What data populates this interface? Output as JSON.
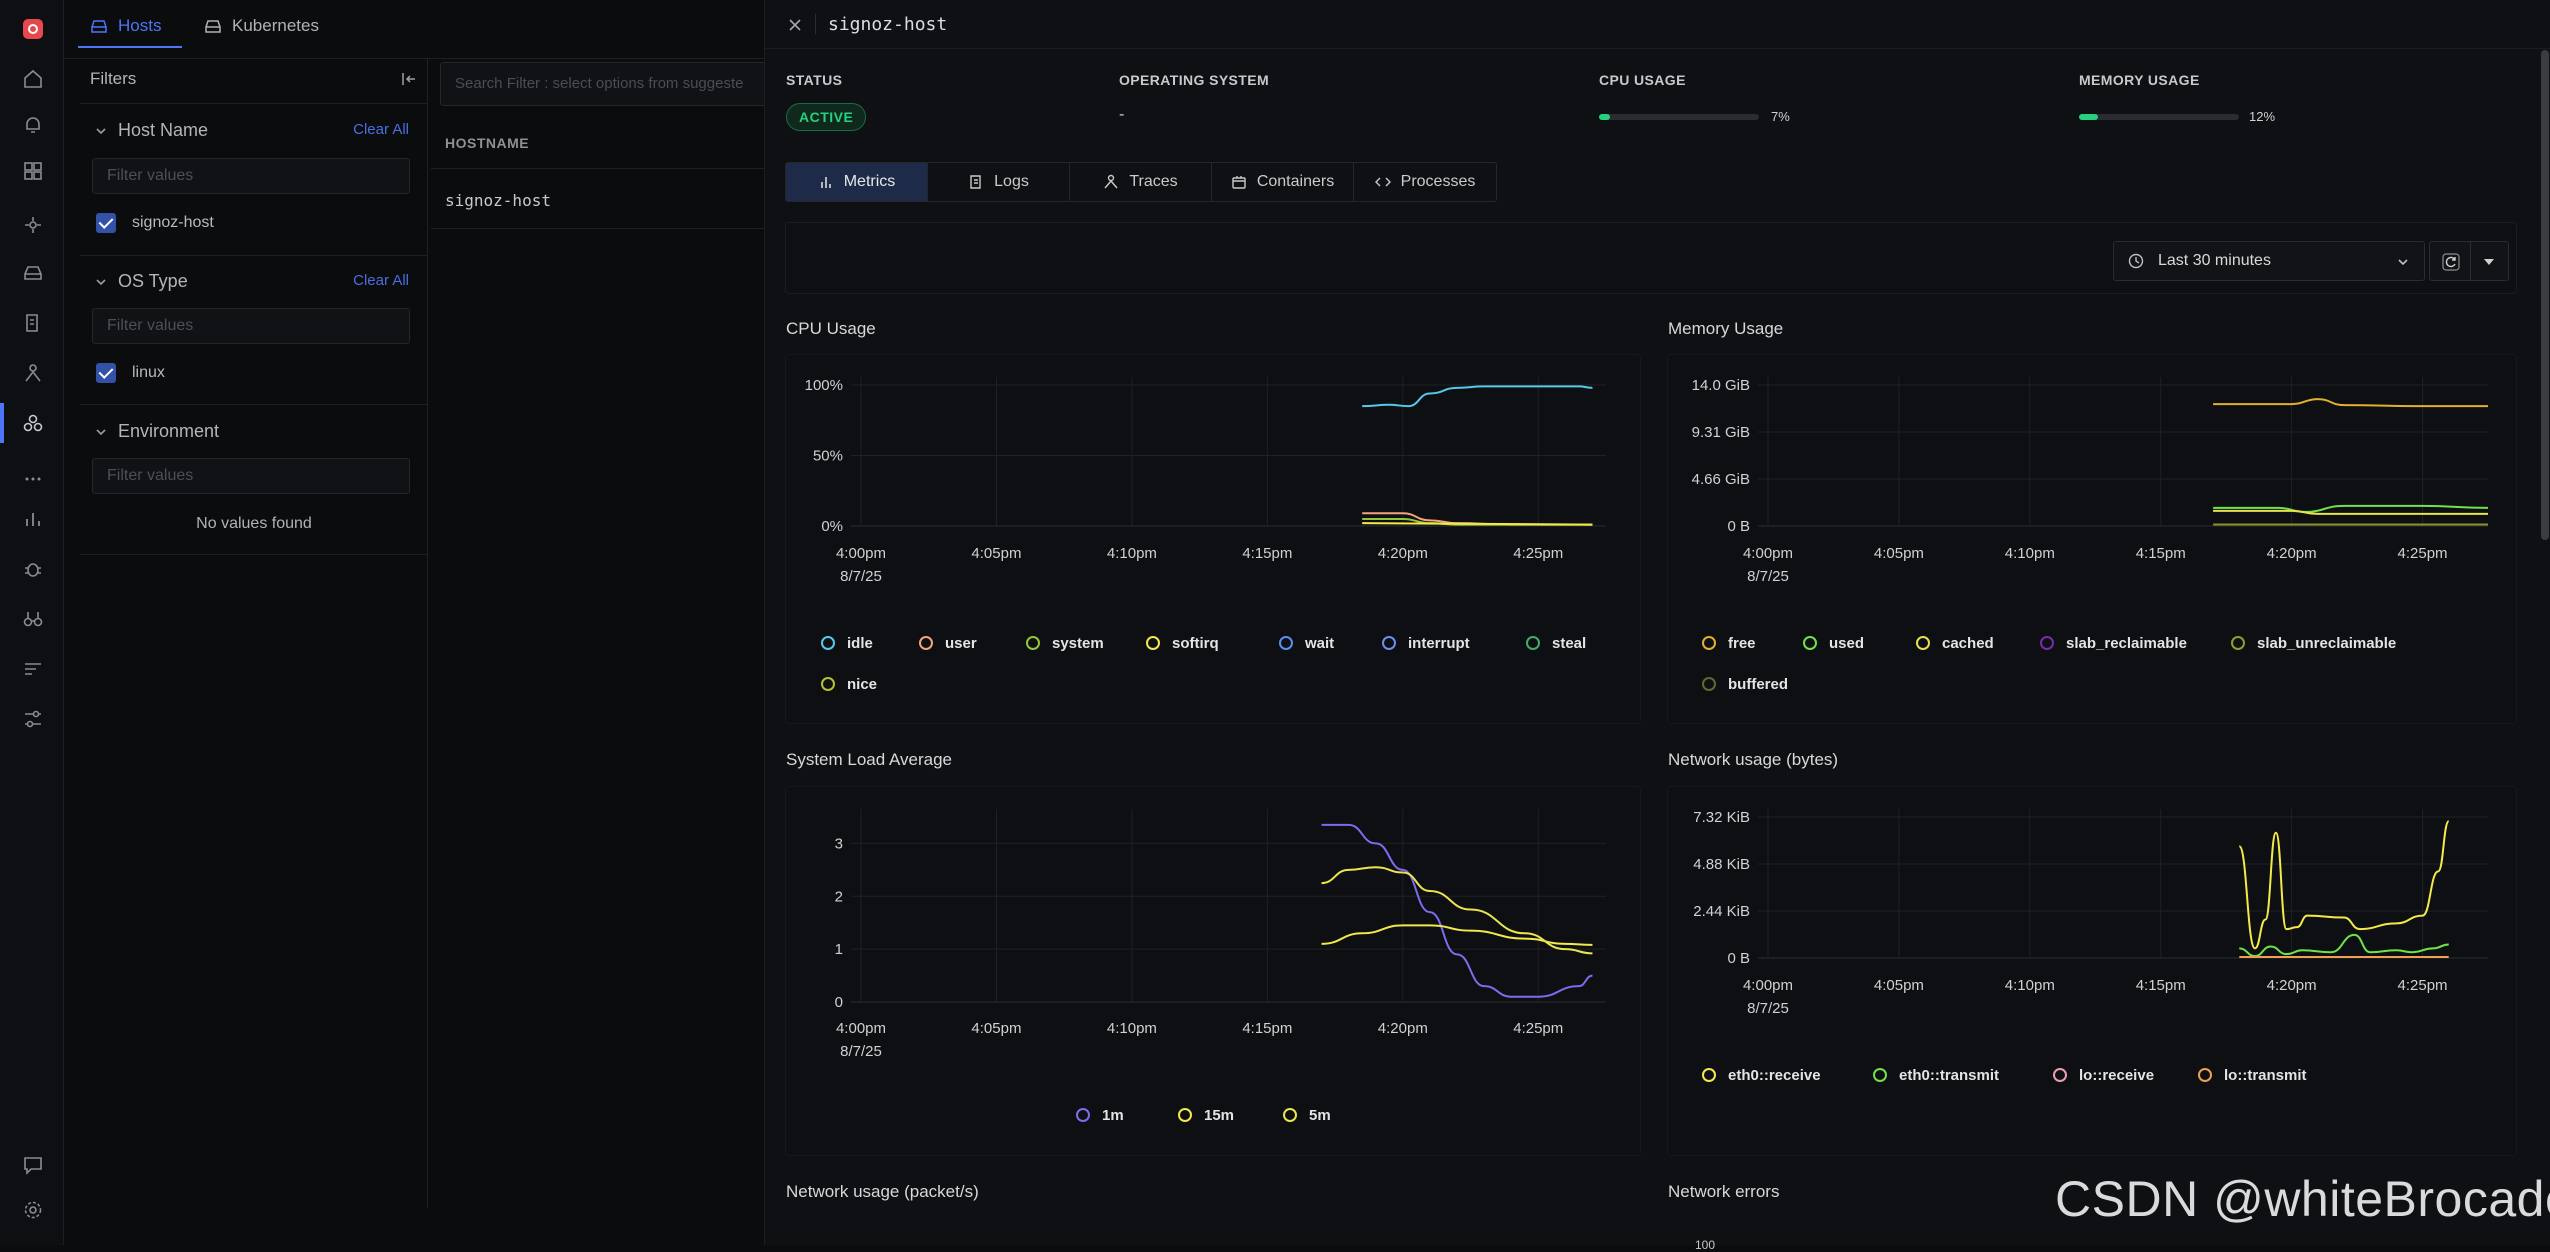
{
  "rail": {
    "icons": [
      "logo-icon",
      "home-icon",
      "alerts-icon",
      "dashboards-icon",
      "services-icon",
      "integrations-icon",
      "logs-icon",
      "traces-icon",
      "infra-icon",
      "more-icon",
      "metrics-icon",
      "exceptions-icon",
      "explorer-icon",
      "pipelines-icon",
      "settings-flow-icon",
      "messages-icon",
      "gear-icon"
    ]
  },
  "tabs_top": {
    "hosts": "Hosts",
    "kubernetes": "Kubernetes"
  },
  "filters": {
    "title": "Filters",
    "search_placeholder": "Search Filter : select options from suggeste",
    "host_name": {
      "label": "Host Name",
      "clear": "Clear All",
      "placeholder": "Filter values",
      "value": "signoz-host"
    },
    "os_type": {
      "label": "OS Type",
      "clear": "Clear All",
      "placeholder": "Filter values",
      "value": "linux"
    },
    "environment": {
      "label": "Environment",
      "placeholder": "Filter values",
      "empty": "No values found"
    }
  },
  "table": {
    "header": "HOSTNAME",
    "row": "signoz-host"
  },
  "drawer": {
    "title": "signoz-host",
    "status": {
      "label": "STATUS",
      "value": "ACTIVE"
    },
    "os": {
      "label": "OPERATING SYSTEM",
      "value": "-"
    },
    "cpu": {
      "label": "CPU USAGE",
      "value": "7%",
      "fraction": 0.07
    },
    "memory": {
      "label": "MEMORY USAGE",
      "value": "12%",
      "fraction": 0.12
    },
    "tabs": [
      "Metrics",
      "Logs",
      "Traces",
      "Containers",
      "Processes"
    ],
    "time_range": "Last 30 minutes"
  },
  "colors": {
    "accent": "#4e74f8",
    "active": "#25d07e",
    "idle": "#55c8ec",
    "user": "#f4a37a",
    "system": "#96c43a",
    "yellow": "#f2e94b",
    "purple": "#7b6cf0",
    "green": "#6ee44a",
    "orange": "#f0a050"
  },
  "chart_data": [
    {
      "type": "line",
      "title": "CPU Usage",
      "x": [
        "4:00pm",
        "4:05pm",
        "4:10pm",
        "4:15pm",
        "4:20pm",
        "4:25pm"
      ],
      "x_date": "8/7/25",
      "yticks": [
        "100%",
        "50%",
        "0%"
      ],
      "ylim": [
        0,
        100
      ],
      "series": [
        {
          "name": "idle",
          "color": "#55c8ec",
          "points": [
            [
              18.5,
              85
            ],
            [
              19.5,
              86
            ],
            [
              20.2,
              85
            ],
            [
              21,
              94
            ],
            [
              22,
              98
            ],
            [
              23,
              99
            ],
            [
              25,
              99
            ],
            [
              26.5,
              99
            ],
            [
              27,
              98
            ]
          ]
        },
        {
          "name": "user",
          "color": "#f4a37a",
          "points": [
            [
              18.5,
              9
            ],
            [
              20,
              9
            ],
            [
              21,
              4
            ],
            [
              22,
              2
            ],
            [
              24,
              1
            ],
            [
              27,
              1
            ]
          ]
        },
        {
          "name": "system",
          "color": "#96c43a",
          "points": [
            [
              18.5,
              5
            ],
            [
              20,
              5
            ],
            [
              21,
              2
            ],
            [
              22,
              1
            ],
            [
              27,
              1
            ]
          ]
        },
        {
          "name": "softirq",
          "color": "#f2e94b",
          "points": [
            [
              18.5,
              2
            ],
            [
              27,
              1
            ]
          ]
        }
      ],
      "legend": [
        "idle",
        "user",
        "system",
        "softirq",
        "wait",
        "interrupt",
        "steal",
        "nice"
      ],
      "legend_colors": [
        "#55c8ec",
        "#f4a37a",
        "#96c43a",
        "#f2e94b",
        "#5a8ef0",
        "#6a8ff0",
        "#3fae6a",
        "#b6c030"
      ]
    },
    {
      "type": "line",
      "title": "Memory Usage",
      "x": [
        "4:00pm",
        "4:05pm",
        "4:10pm",
        "4:15pm",
        "4:20pm",
        "4:25pm"
      ],
      "x_date": "8/7/25",
      "yticks": [
        "14.0 GiB",
        "9.31 GiB",
        "4.66 GiB",
        "0 B"
      ],
      "ylim": [
        0,
        14
      ],
      "series": [
        {
          "name": "free",
          "color": "#e0b030",
          "points": [
            [
              17,
              12.1
            ],
            [
              20,
              12.1
            ],
            [
              21,
              12.6
            ],
            [
              22,
              12
            ],
            [
              25,
              11.9
            ],
            [
              27.5,
              11.9
            ]
          ]
        },
        {
          "name": "used",
          "color": "#6ee44a",
          "points": [
            [
              17,
              1.8
            ],
            [
              19.5,
              1.8
            ],
            [
              20.5,
              1.4
            ],
            [
              22,
              2
            ],
            [
              25,
              2
            ],
            [
              27.5,
              1.8
            ]
          ]
        },
        {
          "name": "cached",
          "color": "#e6e34a",
          "points": [
            [
              17,
              1.5
            ],
            [
              20,
              1.5
            ],
            [
              21,
              1.2
            ],
            [
              27.5,
              1.2
            ]
          ]
        },
        {
          "name": "slab_unreclaimable",
          "color": "#8c8f2a",
          "points": [
            [
              17,
              0.15
            ],
            [
              27.5,
              0.15
            ]
          ]
        }
      ],
      "legend": [
        "free",
        "used",
        "cached",
        "slab_reclaimable",
        "slab_unreclaimable",
        "buffered"
      ],
      "legend_colors": [
        "#e0b030",
        "#6ee44a",
        "#e6e34a",
        "#7a2ab0",
        "#8ca030",
        "#5c6a30"
      ]
    },
    {
      "type": "line",
      "title": "System Load Average",
      "x": [
        "4:00pm",
        "4:05pm",
        "4:10pm",
        "4:15pm",
        "4:20pm",
        "4:25pm"
      ],
      "x_date": "8/7/25",
      "yticks": [
        "3",
        "2",
        "1",
        "0"
      ],
      "ylim": [
        0,
        3.5
      ],
      "series": [
        {
          "name": "1m",
          "color": "#7b6cf0",
          "points": [
            [
              17,
              3.35
            ],
            [
              18,
              3.35
            ],
            [
              19,
              3
            ],
            [
              20,
              2.5
            ],
            [
              21,
              1.7
            ],
            [
              22,
              0.9
            ],
            [
              23,
              0.3
            ],
            [
              24,
              0.1
            ],
            [
              25,
              0.1
            ],
            [
              26.5,
              0.3
            ],
            [
              27,
              0.5
            ]
          ]
        },
        {
          "name": "15m",
          "color": "#f2e94b",
          "points": [
            [
              17,
              1.1
            ],
            [
              18.5,
              1.3
            ],
            [
              20,
              1.45
            ],
            [
              21,
              1.45
            ],
            [
              22.5,
              1.35
            ],
            [
              24.5,
              1.2
            ],
            [
              26,
              1.1
            ],
            [
              27,
              1.08
            ]
          ]
        },
        {
          "name": "5m",
          "color": "#eae54e",
          "points": [
            [
              17,
              2.25
            ],
            [
              18,
              2.5
            ],
            [
              19,
              2.55
            ],
            [
              20,
              2.45
            ],
            [
              21,
              2.1
            ],
            [
              22.5,
              1.75
            ],
            [
              24.5,
              1.3
            ],
            [
              26,
              1.0
            ],
            [
              27,
              0.92
            ]
          ]
        }
      ],
      "legend": [
        "1m",
        "15m",
        "5m"
      ],
      "legend_colors": [
        "#7b6cf0",
        "#f2e94b",
        "#eae54e"
      ]
    },
    {
      "type": "line",
      "title": "Network usage (bytes)",
      "x": [
        "4:00pm",
        "4:05pm",
        "4:10pm",
        "4:15pm",
        "4:20pm",
        "4:25pm"
      ],
      "x_date": "8/7/25",
      "yticks": [
        "7.32 KiB",
        "4.88 KiB",
        "2.44 KiB",
        "0 B"
      ],
      "ylim": [
        0,
        7.32
      ],
      "series": [
        {
          "name": "eth0::receive",
          "color": "#f2e94b",
          "points": [
            [
              18,
              5.8
            ],
            [
              18.6,
              0.5
            ],
            [
              19,
              2
            ],
            [
              19.4,
              6.5
            ],
            [
              19.8,
              1.5
            ],
            [
              20.2,
              1.6
            ],
            [
              20.6,
              2.2
            ],
            [
              22,
              2.1
            ],
            [
              22.6,
              1.5
            ],
            [
              24,
              1.8
            ],
            [
              25,
              2.2
            ],
            [
              25.6,
              4.5
            ],
            [
              26,
              7.1
            ]
          ]
        },
        {
          "name": "eth0::transmit",
          "color": "#6ee44a",
          "points": [
            [
              18,
              0.5
            ],
            [
              18.6,
              0.1
            ],
            [
              19.2,
              0.6
            ],
            [
              19.8,
              0.2
            ],
            [
              20.4,
              0.4
            ],
            [
              21.5,
              0.3
            ],
            [
              22.4,
              1.2
            ],
            [
              23,
              0.3
            ],
            [
              24,
              0.4
            ],
            [
              24.6,
              0.3
            ],
            [
              25.4,
              0.5
            ],
            [
              26,
              0.7
            ]
          ]
        },
        {
          "name": "lo::transmit",
          "color": "#f0a050",
          "points": [
            [
              18,
              0.05
            ],
            [
              26,
              0.05
            ]
          ]
        }
      ],
      "legend": [
        "eth0::receive",
        "eth0::transmit",
        "lo::receive",
        "lo::transmit"
      ],
      "legend_colors": [
        "#f2e94b",
        "#6ee44a",
        "#e8a0b0",
        "#f0a050"
      ]
    }
  ],
  "bottom_titles": {
    "left": "Network usage (packet/s)",
    "right": "Network errors",
    "right_tick": "100"
  },
  "watermark": "CSDN @whiteBrocade"
}
